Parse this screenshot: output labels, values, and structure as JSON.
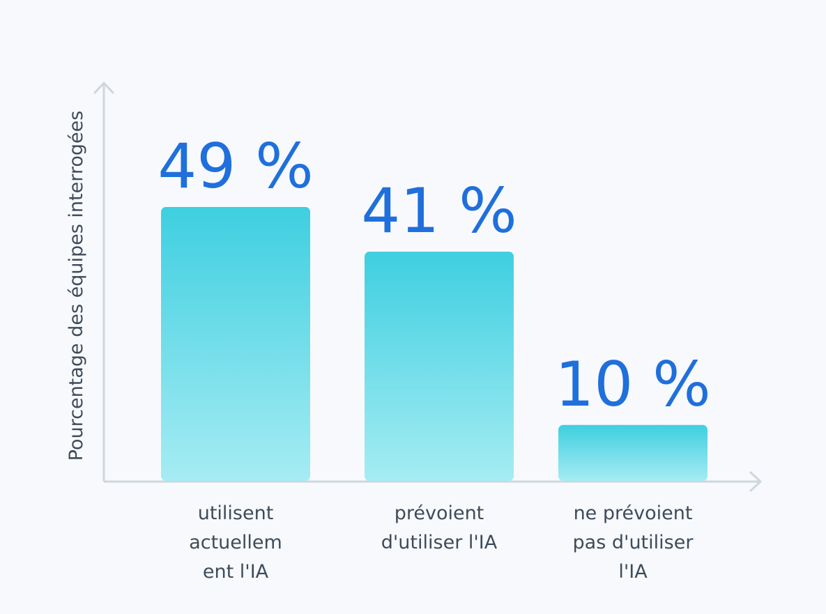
{
  "chart_data": {
    "type": "bar",
    "title": "",
    "xlabel": "",
    "ylabel": "Pourcentage des équipes interrogées",
    "categories": [
      "utilisent actuellement l'IA",
      "prévoient d'utiliser l'IA",
      "ne prévoient pas d'utiliser l'IA"
    ],
    "category_label_lines": [
      [
        "utilisent",
        "actuellem",
        "ent l'IA"
      ],
      [
        "prévoient",
        "d'utiliser l'IA"
      ],
      [
        "ne prévoient",
        "pas d'utiliser",
        "l'IA"
      ]
    ],
    "values": [
      49,
      41,
      10
    ],
    "value_labels": [
      "49 %",
      "41 %",
      "10 %"
    ],
    "unit": "%",
    "ylim": [
      0,
      60
    ],
    "grid": false,
    "legend": "none"
  },
  "colors": {
    "background": "#f7f9fc",
    "bar_top": "#3ecfe0",
    "bar_bottom": "#a6ecf3",
    "value_text": "#1f6fdc",
    "axis": "#cfd6dd",
    "label_text": "#3e4b5b"
  }
}
